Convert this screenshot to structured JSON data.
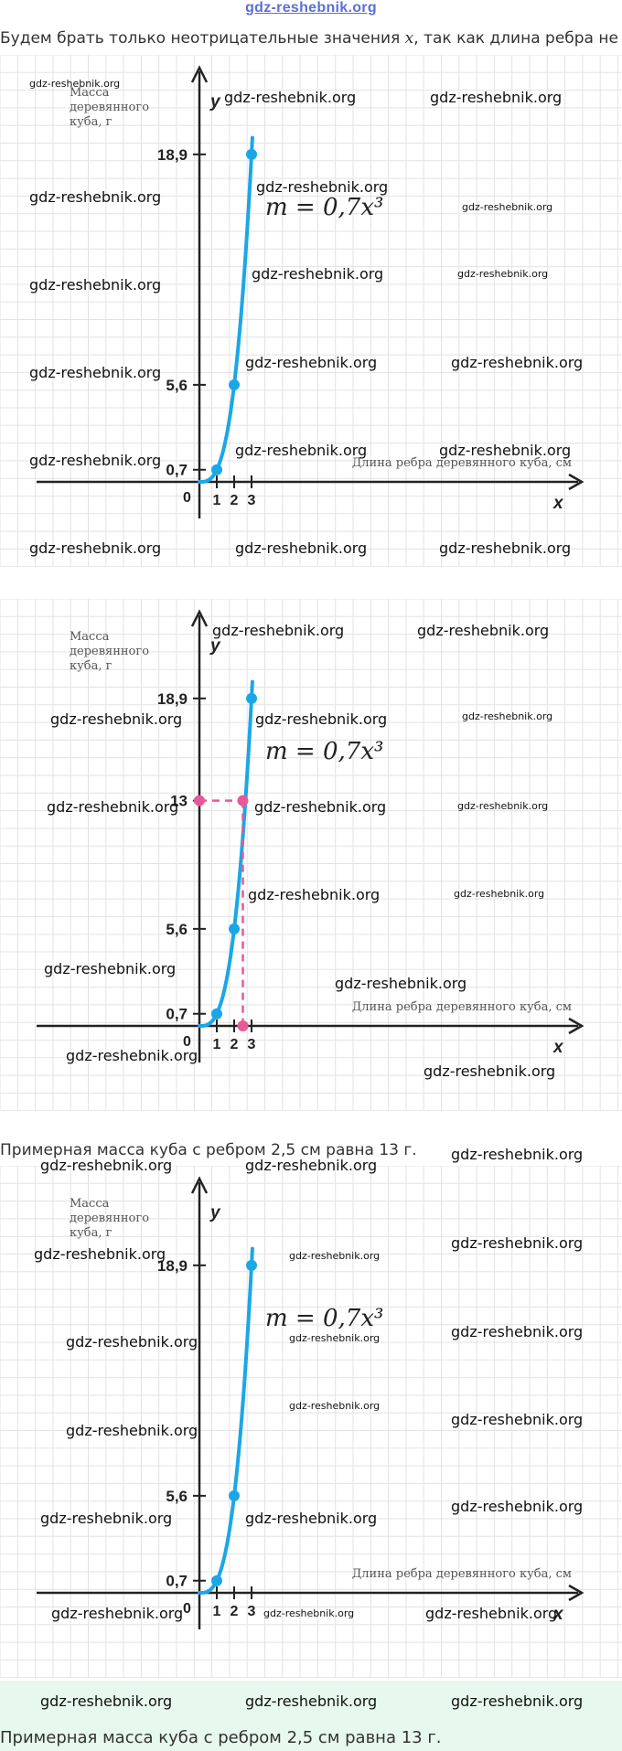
{
  "top_watermark": "gdz-reshebnik.org",
  "intro_text": "Будем брать только неотрицательные значения",
  "intro_var": "x",
  "intro_tail": ", так как длина ребра не",
  "watermark": "gdz-reshebnik.org",
  "graphs": [
    {
      "ylabel_lines": [
        "Масса",
        "деревянного",
        "куба, г"
      ],
      "y_axis_name": "y",
      "x_axis_name": "x",
      "xlabel": "Длина ребра деревянного куба, см",
      "formula": "m = 0,7x³",
      "origin_label": "0",
      "y_ticks": [
        "18,9",
        "5,6",
        "0,7"
      ],
      "x_ticks": [
        "1",
        "2",
        "3"
      ]
    },
    {
      "ylabel_lines": [
        "Масса",
        "деревянного",
        "куба, г"
      ],
      "y_axis_name": "y",
      "x_axis_name": "x",
      "xlabel": "Длина ребра деревянного куба, см",
      "formula": "m = 0,7x³",
      "origin_label": "0",
      "y_ticks": [
        "18,9",
        "13",
        "5,6",
        "0,7"
      ],
      "x_ticks": [
        "1",
        "2",
        "3"
      ]
    },
    {
      "ylabel_lines": [
        "Масса",
        "деревянного",
        "куба, г"
      ],
      "y_axis_name": "y",
      "x_axis_name": "x",
      "xlabel": "Длина ребра деревянного куба, см",
      "formula": "m = 0,7x³",
      "origin_label": "0",
      "y_ticks": [
        "18,9",
        "5,6",
        "0,7"
      ],
      "x_ticks": [
        "1",
        "2",
        "3"
      ]
    }
  ],
  "answer_text_1": "Примерная масса куба с ребром 2,5 см равна 13 г.",
  "answer_text_2": "Примерная масса куба с ребром 2,5 см равна 13 г.",
  "chart_data": [
    {
      "type": "line",
      "series": [
        {
          "x": [
            0,
            1,
            2,
            3
          ],
          "y": [
            0,
            0.7,
            5.6,
            18.9
          ]
        }
      ],
      "xlabel": "Длина ребра деревянного куба, см",
      "ylabel": "Масса деревянного куба, г",
      "annotations": [
        "m = 0,7x³"
      ],
      "grid": true
    },
    {
      "type": "line",
      "series": [
        {
          "x": [
            0,
            1,
            2,
            3
          ],
          "y": [
            0,
            0.7,
            5.6,
            18.9
          ]
        }
      ],
      "highlight": {
        "x": 2.5,
        "y": 13
      },
      "xlabel": "Длина ребра деревянного куба, см",
      "ylabel": "Масса деревянного куба, г",
      "annotations": [
        "m = 0,7x³"
      ],
      "grid": true
    },
    {
      "type": "line",
      "series": [
        {
          "x": [
            0,
            1,
            2,
            3
          ],
          "y": [
            0,
            0.7,
            5.6,
            18.9
          ]
        }
      ],
      "xlabel": "Длина ребра деревянного куба, см",
      "ylabel": "Масса деревянного куба, г",
      "annotations": [
        "m = 0,7x³"
      ],
      "grid": true
    }
  ],
  "colors": {
    "curve": "#1aa7e8",
    "highlight": "#e8599a",
    "grid": "#e3e3e3",
    "axis": "#222222"
  }
}
